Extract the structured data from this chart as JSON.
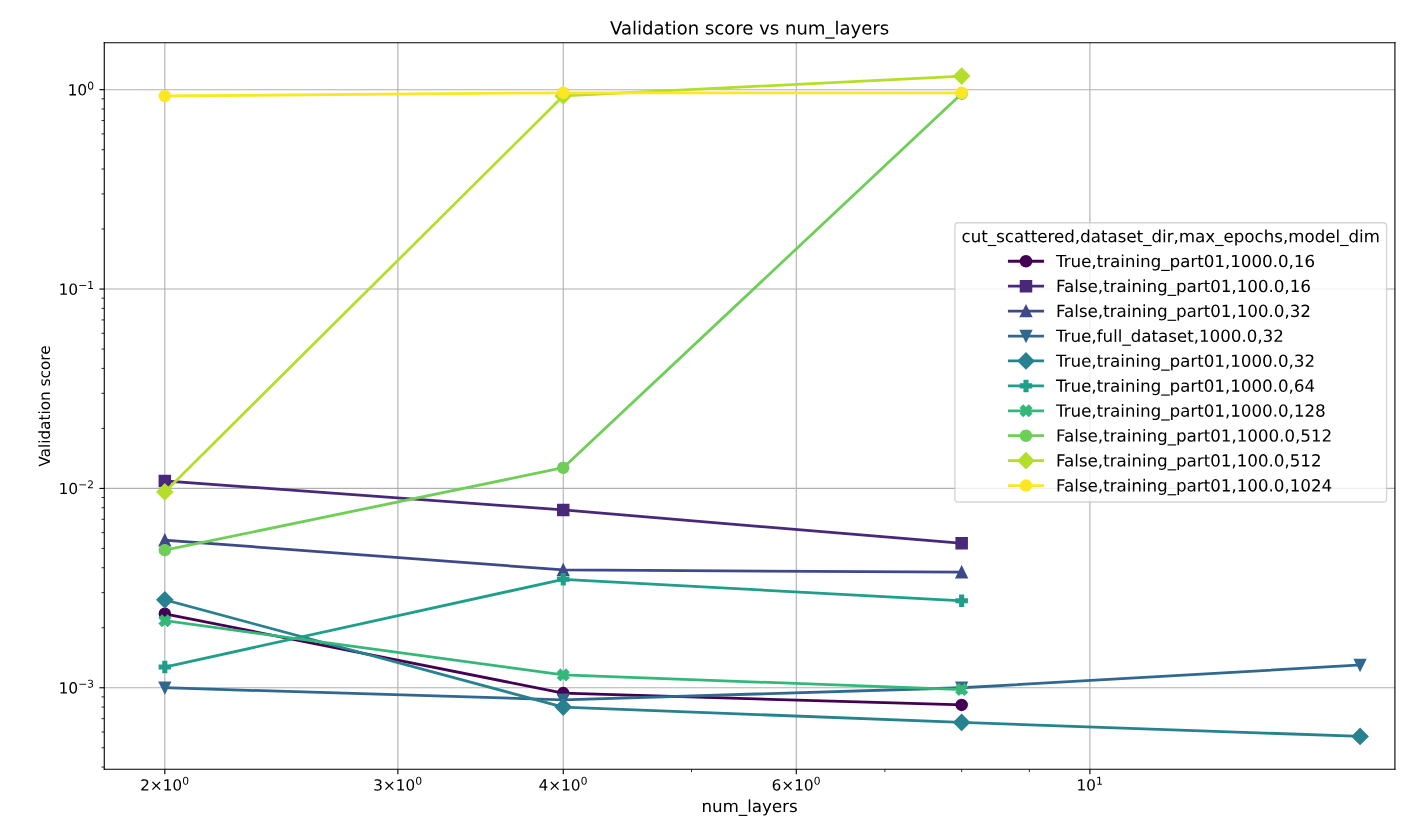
{
  "chart_data": {
    "type": "line",
    "title": "Validation score vs num_layers",
    "xlabel": "num_layers",
    "ylabel": "Validation score",
    "legend_title": "cut_scattered,dataset_dir,max_epochs,model_dim",
    "log": "xy",
    "grid": true,
    "legend": "right",
    "line_style": "solid",
    "xlim": [
      1.8,
      17
    ],
    "ylim": [
      0.00039,
      1.72
    ],
    "xticks": [
      {
        "value": 2,
        "label": "2×10$^{0}$"
      },
      {
        "value": 3,
        "label": "3×10$^{0}$"
      },
      {
        "value": 4,
        "label": "4×10$^{0}$"
      },
      {
        "value": 6,
        "label": "6×10$^{0}$"
      },
      {
        "value": 10,
        "label": "10$^{1}$"
      }
    ],
    "yticks": [
      {
        "value": 0.001,
        "label": "10$^{−3}$"
      },
      {
        "value": 0.01,
        "label": "10$^{−2}$"
      },
      {
        "value": 0.1,
        "label": "10$^{−1}$"
      },
      {
        "value": 1,
        "label": "10$^{0}$"
      }
    ],
    "series": [
      {
        "name": "True,training_part01,1000.0,16",
        "color": "#440154",
        "marker": "circle",
        "x": [
          2,
          4,
          8
        ],
        "values": [
          0.00235,
          0.00094,
          0.00082
        ]
      },
      {
        "name": "False,training_part01,100.0,16",
        "color": "#482878",
        "marker": "square",
        "x": [
          2,
          4,
          8
        ],
        "values": [
          0.0109,
          0.0078,
          0.0053
        ]
      },
      {
        "name": "False,training_part01,100.0,32",
        "color": "#3e4989",
        "marker": "triangle",
        "x": [
          2,
          4,
          8
        ],
        "values": [
          0.0055,
          0.0039,
          0.0038
        ]
      },
      {
        "name": "True,full_dataset,1000.0,32",
        "color": "#31688e",
        "marker": "triangle_down",
        "x": [
          2,
          4,
          8,
          16
        ],
        "values": [
          0.001,
          0.00087,
          0.001,
          0.0013
        ]
      },
      {
        "name": "True,training_part01,1000.0,32",
        "color": "#26828e",
        "marker": "diamond",
        "x": [
          2,
          4,
          8,
          16
        ],
        "values": [
          0.00276,
          0.0008,
          0.00067,
          0.00057
        ]
      },
      {
        "name": "True,training_part01,1000.0,64",
        "color": "#1f9e89",
        "marker": "plus",
        "x": [
          2,
          4,
          8
        ],
        "values": [
          0.00127,
          0.0035,
          0.00273
        ]
      },
      {
        "name": "True,training_part01,1000.0,128",
        "color": "#35b779",
        "marker": "cross",
        "x": [
          2,
          4,
          8
        ],
        "values": [
          0.00217,
          0.00116,
          0.00098
        ]
      },
      {
        "name": "False,training_part01,1000.0,512",
        "color": "#6ece58",
        "marker": "circle",
        "x": [
          2,
          4,
          8
        ],
        "values": [
          0.0049,
          0.0127,
          0.955
        ]
      },
      {
        "name": "False,training_part01,100.0,512",
        "color": "#b5de2b",
        "marker": "diamond",
        "x": [
          2,
          4,
          8
        ],
        "values": [
          0.0096,
          0.93,
          1.17
        ]
      },
      {
        "name": "False,training_part01,100.0,1024",
        "color": "#fde725",
        "marker": "circle",
        "x": [
          2,
          4,
          8
        ],
        "values": [
          0.93,
          0.965,
          0.965
        ]
      }
    ]
  }
}
